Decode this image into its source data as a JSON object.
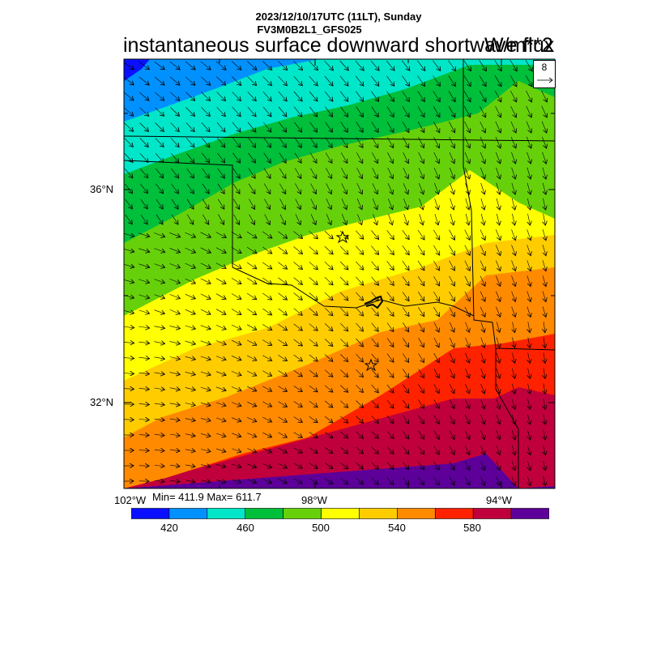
{
  "header": {
    "date_line": "2023/12/10/17UTC (11LT), Sunday",
    "model_line": "FV3M0B2L1_GFS025",
    "title": "instantaneous surface downward shortwave flux",
    "units": "W/m**2"
  },
  "map": {
    "lat_labels": [
      "36°N",
      "32°N"
    ],
    "lon_labels": [
      "102°W",
      "98°W",
      "94°W"
    ],
    "stats": "Min= 411.9 Max= 611.7",
    "reference_vector": "8",
    "markers": [
      "star-marker",
      "star-marker"
    ]
  },
  "colorbar": {
    "colors": [
      "#0a10ff",
      "#0091ff",
      "#00e6c8",
      "#00bf3a",
      "#66d10a",
      "#ffff00",
      "#ffcc00",
      "#ff8a00",
      "#ff2200",
      "#c0003c",
      "#5c0099"
    ],
    "labels": [
      "420",
      "460",
      "500",
      "540",
      "580"
    ]
  }
}
